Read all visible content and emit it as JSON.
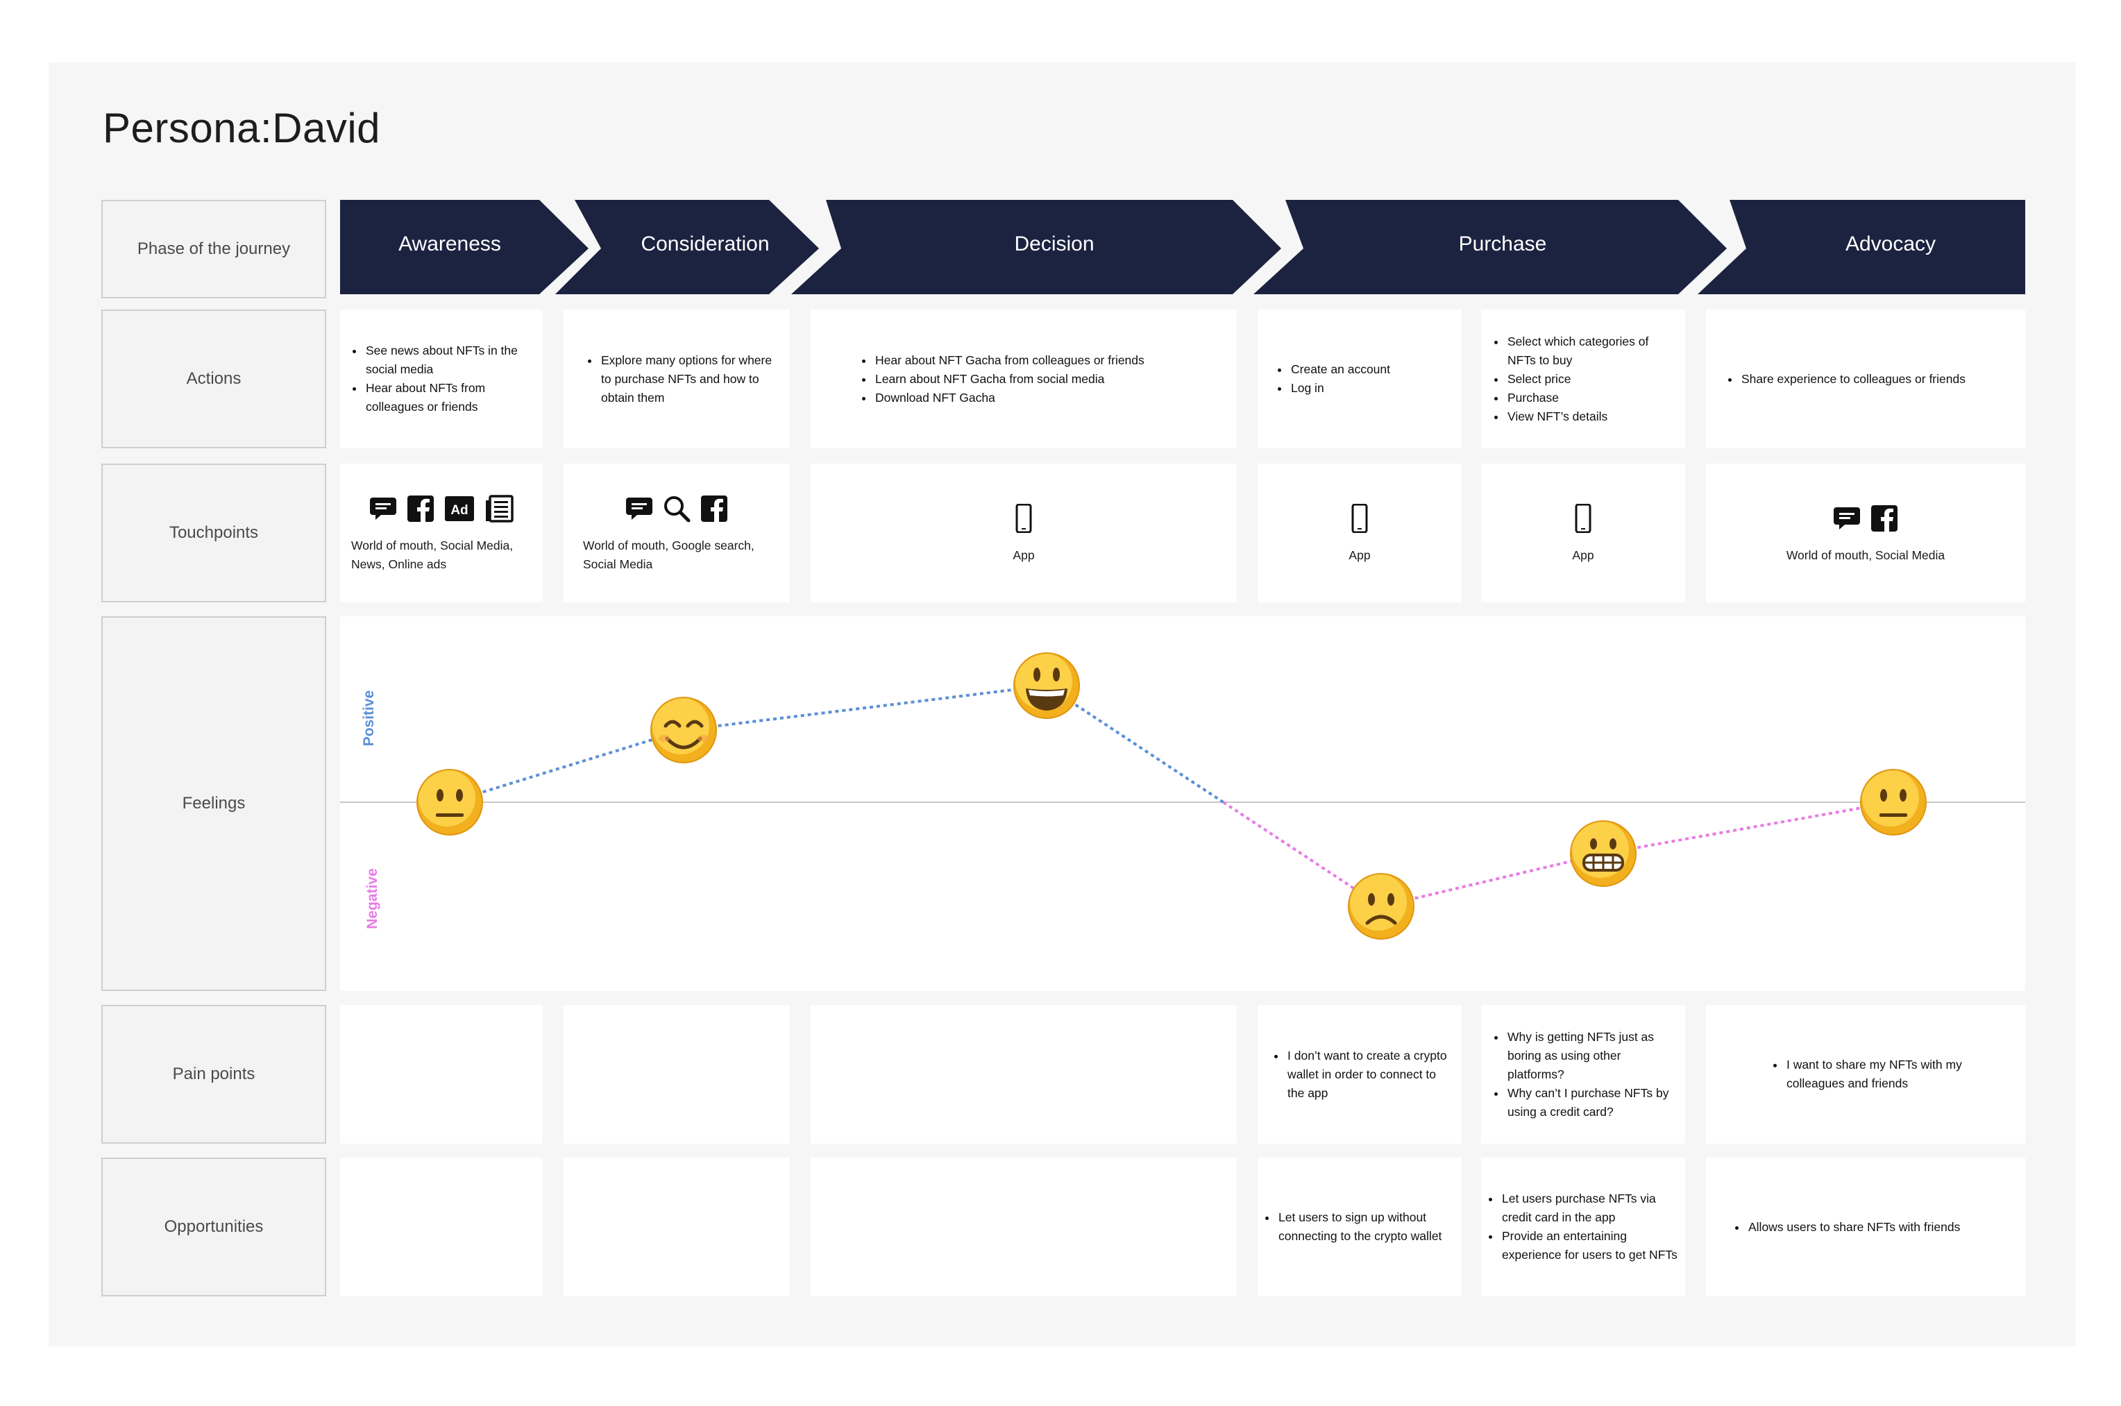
{
  "title": "Persona:David",
  "row_labels": {
    "phase": "Phase of the journey",
    "actions": "Actions",
    "touchpoints": "Touchpoints",
    "feelings": "Feelings",
    "pain_points": "Pain points",
    "opportunities": "Opportunities"
  },
  "phases": [
    "Awareness",
    "Consideration",
    "Decision",
    "Purchase",
    "Advocacy"
  ],
  "actions": [
    [
      "See news about NFTs in the social media",
      "Hear about NFTs from colleagues or friends"
    ],
    [
      "Explore many options for where to purchase NFTs and how to obtain them"
    ],
    [
      "Hear about NFT Gacha from colleagues or friends",
      "Learn about NFT Gacha from social media",
      "Download NFT Gacha"
    ],
    [
      "Create an account",
      "Log in"
    ],
    [
      "Select which categories of NFTs to buy",
      "Select price",
      "Purchase",
      "View NFT’s details"
    ],
    [
      "Share experience to colleagues or friends"
    ]
  ],
  "touchpoints": [
    {
      "icons": [
        "chat-icon",
        "facebook-icon",
        "ad-icon",
        "news-icon"
      ],
      "text": "World of mouth, Social Media, News, Online ads"
    },
    {
      "icons": [
        "chat-icon",
        "search-icon",
        "facebook-icon"
      ],
      "text": "World of mouth, Google search, Social Media"
    },
    {
      "icons": [
        "phone-icon"
      ],
      "text": "App"
    },
    {
      "icons": [
        "phone-icon"
      ],
      "text": "App"
    },
    {
      "icons": [
        "phone-icon"
      ],
      "text": "App"
    },
    {
      "icons": [
        "chat-icon",
        "facebook-icon"
      ],
      "text": "World of mouth, Social Media"
    }
  ],
  "feelings": {
    "positive_label": "Positive",
    "negative_label": "Negative",
    "positive_color": "#5b8fd6",
    "negative_color": "#e87be6",
    "points": [
      {
        "step": 1,
        "emoji": "neutral-face",
        "mood": 0
      },
      {
        "step": 2,
        "emoji": "smiling-face",
        "mood": 1
      },
      {
        "step": 3,
        "emoji": "grinning-face",
        "mood": 2
      },
      {
        "step": 4,
        "emoji": "frowning-face",
        "mood": -2
      },
      {
        "step": 5,
        "emoji": "grimacing-face",
        "mood": -1
      },
      {
        "step": 6,
        "emoji": "neutral-face",
        "mood": 0
      }
    ]
  },
  "pain_points": [
    [],
    [],
    [],
    [
      "I don’t want to create a crypto wallet in order to connect to the app"
    ],
    [
      "Why is getting NFTs just as boring as using other platforms?",
      "Why can’t I purchase NFTs by using a credit card?"
    ],
    [
      "I want to share my NFTs with my colleagues and friends"
    ]
  ],
  "opportunities": [
    [],
    [],
    [],
    [
      "Let users to sign up without connecting to the crypto wallet"
    ],
    [
      "Let users purchase NFTs via credit card in the app",
      "Provide an entertaining experience for users to get NFTs"
    ],
    [
      "Allows users to share NFTs with friends"
    ]
  ],
  "colors": {
    "phase_bar": "#1b2340",
    "board_bg": "#f6f6f7"
  }
}
